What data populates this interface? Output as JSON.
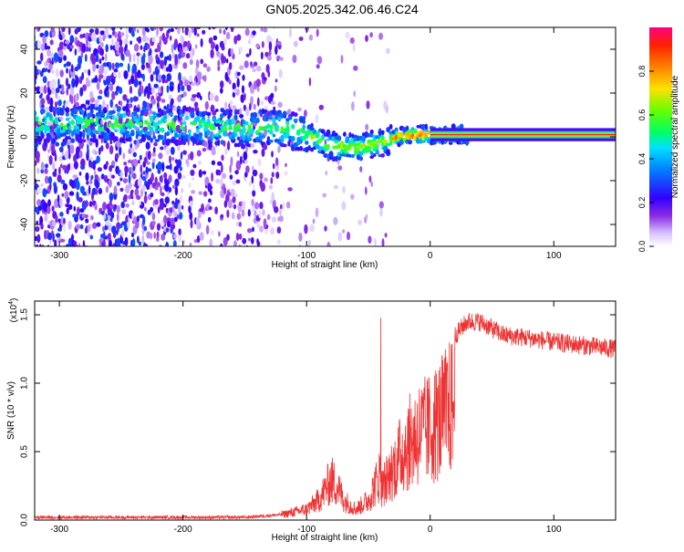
{
  "page": {
    "title": "GN05.2025.342.06.46.C24"
  },
  "colors": {
    "snr_line": "#ee3333",
    "axis": "#000000",
    "colorbar": [
      "#ffffff",
      "#c9a8ff",
      "#8a2be2",
      "#3300ff",
      "#00bfff",
      "#00ff66",
      "#66ff00",
      "#ffcc00",
      "#ff3300",
      "#ff0066"
    ]
  },
  "chart_data": [
    {
      "type": "heatmap",
      "title": "GN05.2025.342.06.46.C24",
      "xlabel": "Height of straight line (km)",
      "ylabel": "Frequency (Hz)",
      "xlim": [
        -320,
        150
      ],
      "ylim": [
        -50,
        50
      ],
      "xticks": [
        -300,
        -200,
        -100,
        0,
        100
      ],
      "yticks": [
        -40,
        -20,
        0,
        20,
        40
      ],
      "colorbar": {
        "label": "Normalized spectral amplitude",
        "range": [
          0.0,
          1.0
        ],
        "ticks": [
          "0.0",
          "0.2",
          "0.4",
          "0.6",
          "0.8"
        ]
      },
      "ridge": {
        "description_points_km_hz": [
          [
            -240,
            6
          ],
          [
            -200,
            5
          ],
          [
            -150,
            4
          ],
          [
            -120,
            4
          ],
          [
            -100,
            1
          ],
          [
            -80,
            -4
          ],
          [
            -60,
            -5
          ],
          [
            -40,
            -3
          ],
          [
            -25,
            0
          ],
          [
            -10,
            1
          ],
          [
            0,
            1
          ],
          [
            50,
            1
          ],
          [
            150,
            1
          ]
        ]
      }
    },
    {
      "type": "line",
      "xlabel": "Height of straight line (km)",
      "ylabel": "SNR (10 * v/v)",
      "yscale_label": "(x10",
      "yscale_exp": "4",
      "y_multiplier": 10000,
      "xlim": [
        -320,
        150
      ],
      "ylim": [
        0,
        1.6
      ],
      "xticks": [
        -300,
        -200,
        -100,
        0,
        100
      ],
      "yticks": [
        "0.0",
        "0.5",
        "1.0",
        "1.5"
      ],
      "series": [
        {
          "envelope_km_value": [
            [
              -320,
              0.02
            ],
            [
              -200,
              0.02
            ],
            [
              -150,
              0.02
            ],
            [
              -120,
              0.04
            ],
            [
              -100,
              0.08
            ],
            [
              -90,
              0.15
            ],
            [
              -80,
              0.3
            ],
            [
              -75,
              0.25
            ],
            [
              -70,
              0.15
            ],
            [
              -60,
              0.08
            ],
            [
              -50,
              0.15
            ],
            [
              -40,
              0.35
            ],
            [
              -30,
              0.6
            ],
            [
              -20,
              0.85
            ],
            [
              -10,
              1.0
            ],
            [
              0,
              1.05
            ],
            [
              10,
              1.2
            ],
            [
              20,
              1.35
            ],
            [
              30,
              1.45
            ],
            [
              40,
              1.45
            ],
            [
              60,
              1.35
            ],
            [
              80,
              1.33
            ],
            [
              100,
              1.3
            ],
            [
              120,
              1.28
            ],
            [
              150,
              1.25
            ]
          ]
        }
      ]
    }
  ]
}
